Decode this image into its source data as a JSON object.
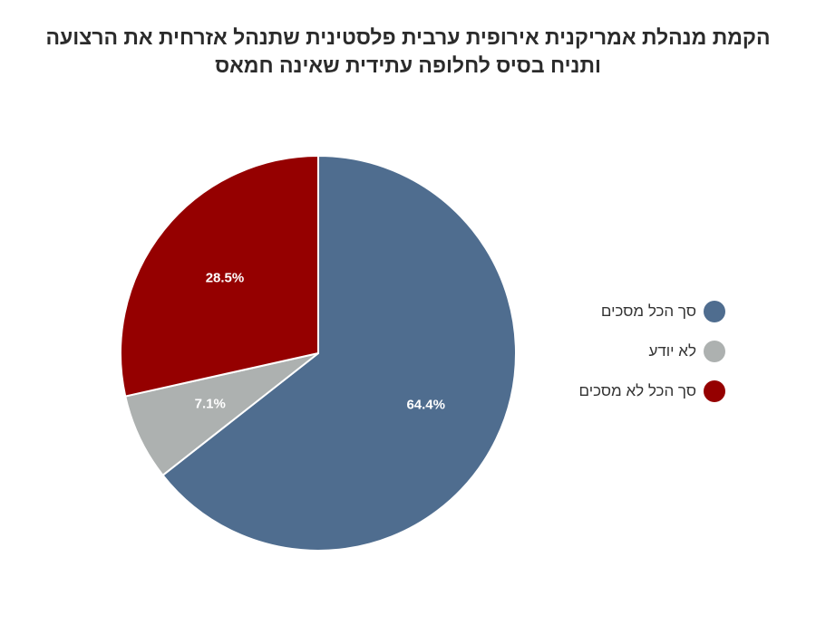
{
  "chart_data": {
    "type": "pie",
    "title_lines": [
      "הקמת מנהלת אמריקנית אירופית ערבית פלסטינית שתנהל אזרחית את הרצועה",
      "ותניח בסיס לחלופה עתידית שאינה חמאס"
    ],
    "slices": [
      {
        "label": "סך הכל מסכים",
        "value": 64.4,
        "display": "64.4%",
        "color": "#4f6d8f"
      },
      {
        "label": "לא יודע",
        "value": 7.1,
        "display": "7.1%",
        "color": "#adb1b0"
      },
      {
        "label": "סך הכל לא מסכים",
        "value": 28.5,
        "display": "28.5%",
        "color": "#950000"
      }
    ],
    "start": "12-o-clock",
    "direction": "clockwise",
    "legend_position": "right"
  }
}
